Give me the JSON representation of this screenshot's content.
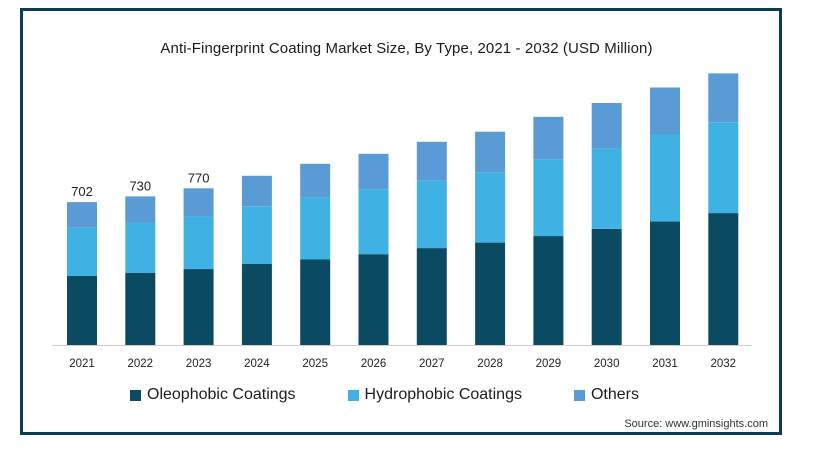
{
  "chart_data": {
    "type": "bar",
    "stacked": true,
    "title": "Anti-Fingerprint Coating Market Size, By Type, 2021 - 2032 (USD Million)",
    "categories": [
      "2021",
      "2022",
      "2023",
      "2024",
      "2025",
      "2026",
      "2027",
      "2028",
      "2029",
      "2030",
      "2031",
      "2032"
    ],
    "series": [
      {
        "name": "Oleophobic Coatings",
        "color": "#0b4a63",
        "values": [
          340,
          354,
          373,
          398,
          420,
          446,
          476,
          503,
          535,
          570,
          607,
          648
        ]
      },
      {
        "name": "Hydrophobic Coatings",
        "color": "#3fb1e3",
        "values": [
          236,
          246,
          260,
          283,
          305,
          318,
          333,
          346,
          377,
          397,
          427,
          446
        ]
      },
      {
        "name": "Others",
        "color": "#5b9bd5",
        "values": [
          126,
          130,
          137,
          150,
          165,
          175,
          189,
          199,
          209,
          222,
          231,
          240
        ]
      }
    ],
    "data_labels": [
      "702",
      "730",
      "770",
      "",
      "",
      "",
      "",
      "",
      "",
      "",
      "",
      ""
    ],
    "ylim": [
      0,
      1400
    ],
    "grid": false,
    "legend_position": "bottom"
  },
  "source_text": "Source: www.gminsights.com"
}
